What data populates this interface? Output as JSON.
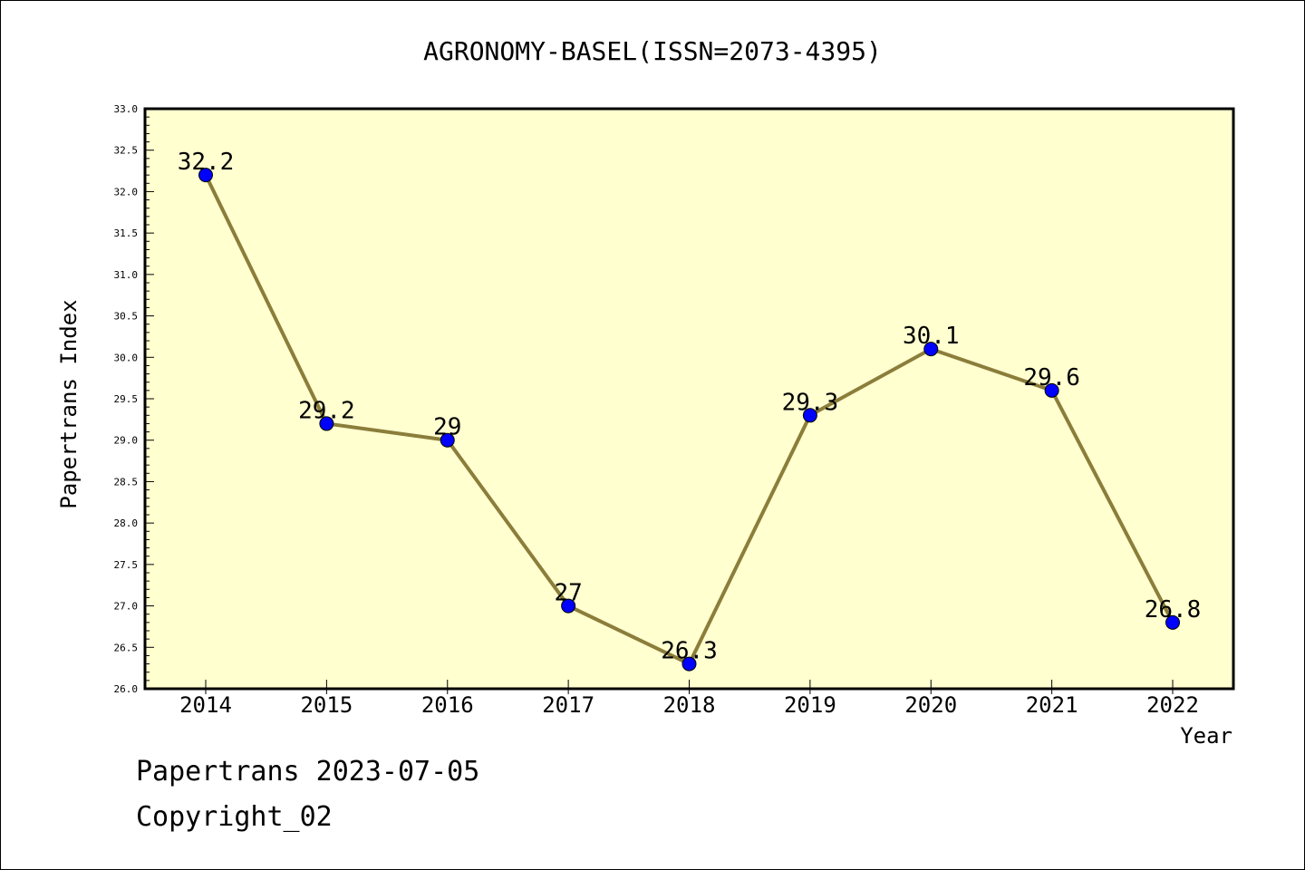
{
  "chart_data": {
    "type": "line",
    "title": "AGRONOMY-BASEL(ISSN=2073-4395)",
    "xlabel": "Year",
    "ylabel": "Papertrans Index",
    "categories": [
      "2014",
      "2015",
      "2016",
      "2017",
      "2018",
      "2019",
      "2020",
      "2021",
      "2022"
    ],
    "values": [
      32.2,
      29.2,
      29,
      27,
      26.3,
      29.3,
      30.1,
      29.6,
      26.8
    ],
    "data_labels": [
      "32.2",
      "29.2",
      "29",
      "27",
      "26.3",
      "29.3",
      "30.1",
      "29.6",
      "26.8"
    ],
    "ylim": [
      26.0,
      33.0
    ],
    "yticks": [
      "26.0",
      "26.5",
      "27.0",
      "27.5",
      "28.0",
      "28.5",
      "29.0",
      "29.5",
      "30.0",
      "30.5",
      "31.0",
      "31.5",
      "32.0",
      "32.5",
      "33.0"
    ],
    "grid": false,
    "colors": {
      "plot_background": "#ffffd0",
      "line": "#8b7d3a",
      "marker": "#0000ff",
      "axis": "#000000"
    }
  },
  "footer": {
    "line1": "Papertrans 2023-07-05",
    "line2": "Copyright_02"
  }
}
